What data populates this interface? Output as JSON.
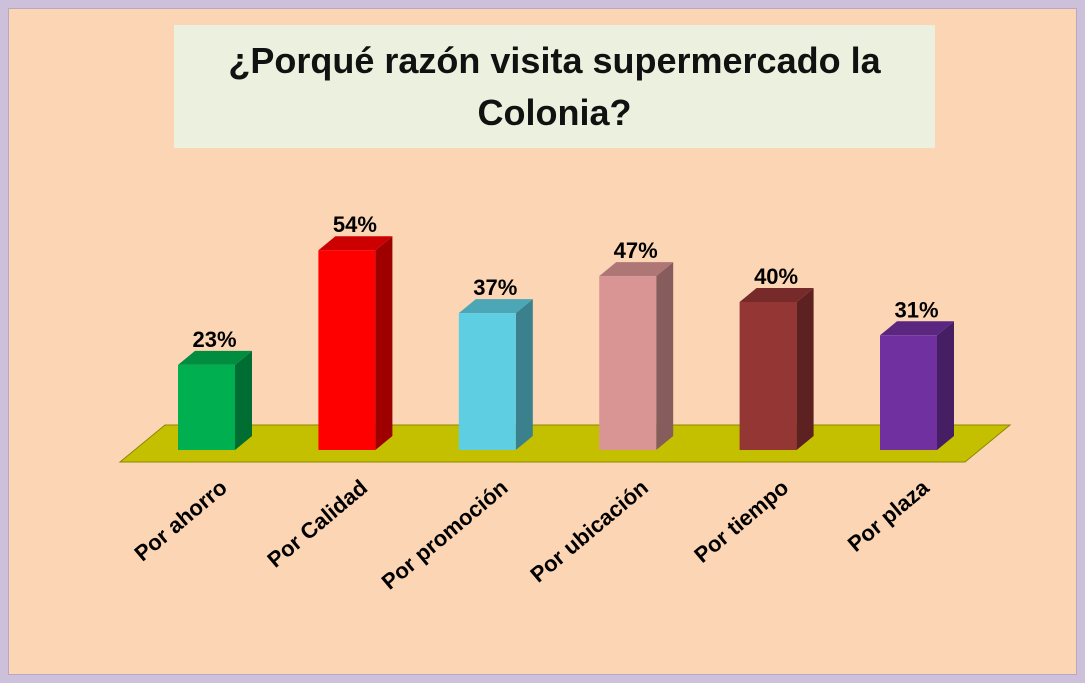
{
  "chart_data": {
    "type": "bar3d",
    "title": "¿Porqué razón visita supermercado la Colonia?",
    "categories": [
      "Por ahorro",
      "Por Calidad",
      "Por promoción",
      "Por ubicación",
      "Por tiempo",
      "Por plaza"
    ],
    "values": [
      23,
      54,
      37,
      47,
      40,
      31
    ],
    "value_labels": [
      "23%",
      "54%",
      "37%",
      "47%",
      "40%",
      "31%"
    ],
    "colors": [
      "#00b050",
      "#ff0000",
      "#5ecfe3",
      "#d99594",
      "#943634",
      "#7030a0"
    ]
  }
}
